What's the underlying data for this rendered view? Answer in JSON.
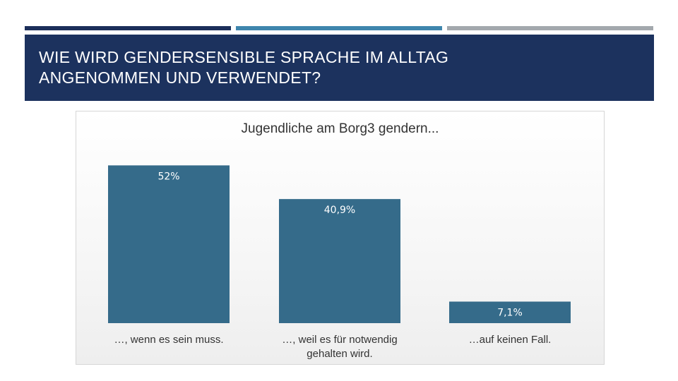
{
  "slide": {
    "title_line1": "WIE WIRD GENDERSENSIBLE SPRACHE IM ALLTAG",
    "title_line2": "ANGENOMMEN UND VERWENDET?"
  },
  "colors": {
    "accent_1": "#1c2f5a",
    "accent_2": "#3f86ad",
    "accent_3": "#a3a8ad",
    "bar": "#356b8a",
    "title_band": "#1c325e"
  },
  "chart_data": {
    "type": "bar",
    "title": "Jugendliche am Borg3 gendern...",
    "categories": [
      [
        "…, wenn es sein muss."
      ],
      [
        "…, weil es für notwendig",
        "gehalten wird."
      ],
      [
        "…auf keinen Fall."
      ]
    ],
    "values": [
      52,
      40.9,
      7.1
    ],
    "data_labels": [
      "52%",
      "40,9%",
      "7,1%"
    ],
    "ylim": [
      0,
      60
    ],
    "grid": false,
    "legend": "none"
  }
}
